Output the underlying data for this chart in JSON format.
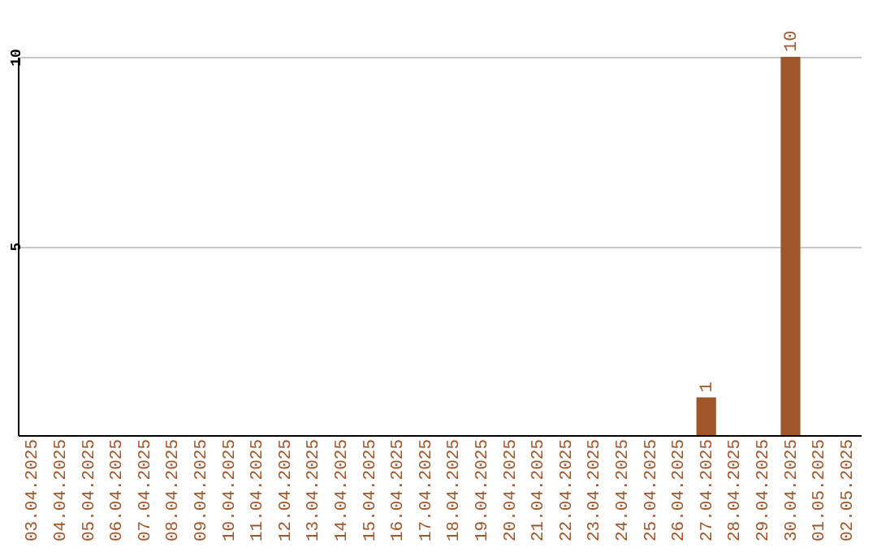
{
  "chart_data": {
    "type": "bar",
    "categories": [
      "03.04.2025",
      "04.04.2025",
      "05.04.2025",
      "06.04.2025",
      "07.04.2025",
      "08.04.2025",
      "09.04.2025",
      "10.04.2025",
      "11.04.2025",
      "12.04.2025",
      "13.04.2025",
      "14.04.2025",
      "15.04.2025",
      "16.04.2025",
      "17.04.2025",
      "18.04.2025",
      "19.04.2025",
      "20.04.2025",
      "21.04.2025",
      "22.04.2025",
      "23.04.2025",
      "24.04.2025",
      "25.04.2025",
      "26.04.2025",
      "27.04.2025",
      "28.04.2025",
      "29.04.2025",
      "30.04.2025",
      "01.05.2025",
      "02.05.2025"
    ],
    "values": [
      0,
      0,
      0,
      0,
      0,
      0,
      0,
      0,
      0,
      0,
      0,
      0,
      0,
      0,
      0,
      0,
      0,
      0,
      0,
      0,
      0,
      0,
      0,
      0,
      1,
      0,
      0,
      10,
      0,
      0
    ],
    "value_labels": [
      null,
      null,
      null,
      null,
      null,
      null,
      null,
      null,
      null,
      null,
      null,
      null,
      null,
      null,
      null,
      null,
      null,
      null,
      null,
      null,
      null,
      null,
      null,
      null,
      "1",
      null,
      null,
      "10",
      null,
      null
    ],
    "color": "#a0562a",
    "ylim": [
      0,
      10
    ],
    "yticks": [
      5,
      10
    ],
    "grid": "y"
  }
}
